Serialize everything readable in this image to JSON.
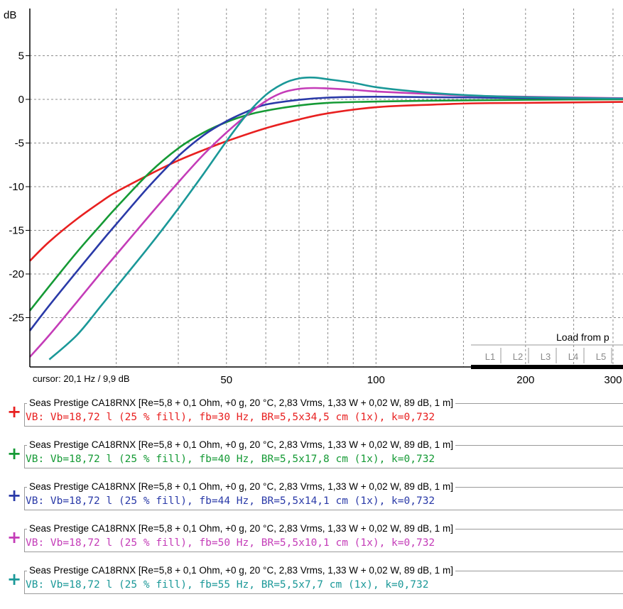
{
  "chart_data": {
    "type": "line",
    "ylabel": "dB",
    "xscale": "log",
    "xlim": [
      20.1,
      380
    ],
    "ylim": [
      -30,
      10
    ],
    "grid": true,
    "y_ticks": [
      5,
      0,
      -5,
      -10,
      -15,
      -20,
      -25
    ],
    "x_ticks": [
      50,
      100,
      200,
      300
    ],
    "cursor_readout": "cursor: 20,1 Hz / 9,9 dB",
    "series": [
      {
        "key": "s1",
        "color": "#e82020",
        "x": [
          20.1,
          22,
          25,
          28,
          30,
          35,
          40,
          45,
          50,
          60,
          70,
          80,
          100,
          130,
          160,
          200,
          300,
          380
        ],
        "y": [
          -18.5,
          -16.3,
          -13.7,
          -11.7,
          -10.6,
          -8.6,
          -7.0,
          -5.8,
          -4.8,
          -3.3,
          -2.3,
          -1.6,
          -0.9,
          -0.6,
          -0.45,
          -0.4,
          -0.3,
          -0.25
        ]
      },
      {
        "key": "s2",
        "color": "#159a35",
        "x": [
          20.1,
          22,
          25,
          28,
          30,
          35,
          40,
          45,
          50,
          55,
          60,
          70,
          80,
          100,
          130,
          160,
          200,
          300,
          380
        ],
        "y": [
          -24.2,
          -21.4,
          -17.5,
          -14.3,
          -12.4,
          -8.4,
          -5.6,
          -3.8,
          -2.6,
          -1.8,
          -1.3,
          -0.7,
          -0.4,
          -0.25,
          -0.15,
          -0.1,
          -0.05,
          0.0,
          0.0
        ]
      },
      {
        "key": "s3",
        "color": "#2a3aa8",
        "x": [
          20.1,
          22,
          25,
          28,
          30,
          35,
          40,
          45,
          50,
          55,
          60,
          70,
          80,
          100,
          130,
          160,
          200,
          300,
          380
        ],
        "y": [
          -26.5,
          -23.6,
          -19.7,
          -16.3,
          -14.3,
          -9.9,
          -6.5,
          -4.1,
          -2.5,
          -1.4,
          -0.6,
          -0.05,
          0.2,
          0.3,
          0.25,
          0.2,
          0.15,
          0.1,
          0.05
        ]
      },
      {
        "key": "s4",
        "color": "#c43cb8",
        "x": [
          20.1,
          22,
          25,
          28,
          30,
          35,
          40,
          45,
          50,
          55,
          60,
          65,
          70,
          75,
          80,
          90,
          100,
          130,
          160,
          200,
          300,
          380
        ],
        "y": [
          -29.5,
          -27.0,
          -23.2,
          -19.8,
          -17.8,
          -13.3,
          -9.5,
          -6.3,
          -3.8,
          -1.8,
          -0.2,
          0.8,
          1.2,
          1.3,
          1.25,
          1.1,
          0.9,
          0.6,
          0.4,
          0.3,
          0.15,
          0.1
        ]
      },
      {
        "key": "s5",
        "color": "#1a9898",
        "x": [
          22,
          25,
          28,
          30,
          35,
          40,
          45,
          50,
          55,
          60,
          65,
          70,
          75,
          80,
          90,
          100,
          120,
          150,
          200,
          300,
          380
        ],
        "y": [
          -29.8,
          -27.0,
          -23.6,
          -21.5,
          -16.8,
          -12.5,
          -8.5,
          -4.8,
          -1.7,
          0.5,
          1.8,
          2.4,
          2.5,
          2.3,
          1.9,
          1.4,
          0.9,
          0.5,
          0.25,
          0.1,
          0.05
        ]
      }
    ]
  },
  "load_panel": {
    "label": "Load from p",
    "slots": [
      "L1",
      "L2",
      "L3",
      "L4",
      "L5"
    ]
  },
  "legend": [
    {
      "color": "#e82020",
      "plus": "+",
      "title": "Seas Prestige CA18RNX [Re=5,8 + 0,1 Ohm, +0 g, 20 °C, 2,83 Vrms, 1,33 W + 0,02 W, 89 dB, 1 m]",
      "detail": "VB: Vb=18,72 l (25 % fill), fb=30 Hz, BR=5,5x34,5 cm (1x), k=0,732"
    },
    {
      "color": "#159a35",
      "plus": "+",
      "title": "Seas Prestige CA18RNX [Re=5,8 + 0,1 Ohm, +0 g, 20 °C, 2,83 Vrms, 1,33 W + 0,02 W, 89 dB, 1 m]",
      "detail": "VB: Vb=18,72 l (25 % fill), fb=40 Hz, BR=5,5x17,8 cm (1x), k=0,732"
    },
    {
      "color": "#2a3aa8",
      "plus": "+",
      "title": "Seas Prestige CA18RNX [Re=5,8 + 0,1 Ohm, +0 g, 20 °C, 2,83 Vrms, 1,33 W + 0,02 W, 89 dB, 1 m]",
      "detail": "VB: Vb=18,72 l (25 % fill), fb=44 Hz, BR=5,5x14,1 cm (1x), k=0,732"
    },
    {
      "color": "#c43cb8",
      "plus": "+",
      "title": "Seas Prestige CA18RNX [Re=5,8 + 0,1 Ohm, +0 g, 20 °C, 2,83 Vrms, 1,33 W + 0,02 W, 89 dB, 1 m]",
      "detail": "VB: Vb=18,72 l (25 % fill), fb=50 Hz, BR=5,5x10,1 cm (1x), k=0,732"
    },
    {
      "color": "#1a9898",
      "plus": "+",
      "title": "Seas Prestige CA18RNX [Re=5,8 + 0,1 Ohm, +0 g, 20 °C, 2,83 Vrms, 1,33 W + 0,02 W, 89 dB, 1 m]",
      "detail": "VB: Vb=18,72 l (25 % fill), fb=55 Hz, BR=5,5x7,7 cm (1x), k=0,732"
    }
  ]
}
